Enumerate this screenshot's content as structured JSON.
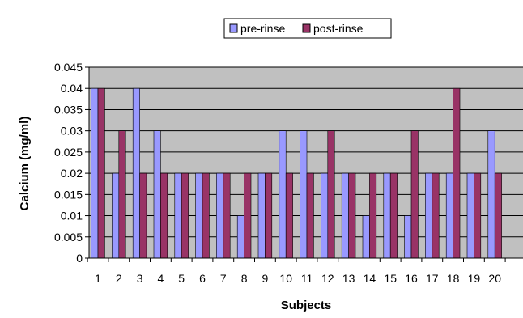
{
  "chart_data": {
    "type": "bar",
    "title": "",
    "xlabel": "Subjects",
    "ylabel": "Calcium (mg/ml)",
    "ylim": [
      0,
      0.045
    ],
    "yticks": [
      "0",
      "0.005",
      "0.01",
      "0.015",
      "0.02",
      "0.025",
      "0.03",
      "0.035",
      "0.04",
      "0.045"
    ],
    "grid": true,
    "legend_position": "top",
    "categories": [
      "1",
      "2",
      "3",
      "4",
      "5",
      "6",
      "7",
      "8",
      "9",
      "10",
      "11",
      "12",
      "13",
      "14",
      "15",
      "16",
      "17",
      "18",
      "19",
      "20"
    ],
    "series": [
      {
        "name": "pre-rinse",
        "color": "#9999FF",
        "values": [
          0.04,
          0.02,
          0.04,
          0.03,
          0.02,
          0.02,
          0.02,
          0.01,
          0.02,
          0.03,
          0.03,
          0.02,
          0.02,
          0.01,
          0.02,
          0.01,
          0.02,
          0.02,
          0.02,
          0.03
        ]
      },
      {
        "name": "post-rinse",
        "color": "#993366",
        "values": [
          0.04,
          0.03,
          0.02,
          0.02,
          0.02,
          0.02,
          0.02,
          0.02,
          0.02,
          0.02,
          0.02,
          0.03,
          0.02,
          0.02,
          0.02,
          0.03,
          0.02,
          0.04,
          0.02,
          0.02
        ]
      }
    ],
    "colors": {
      "plot_background": "#C0C0C0",
      "gridline": "#000000"
    }
  }
}
